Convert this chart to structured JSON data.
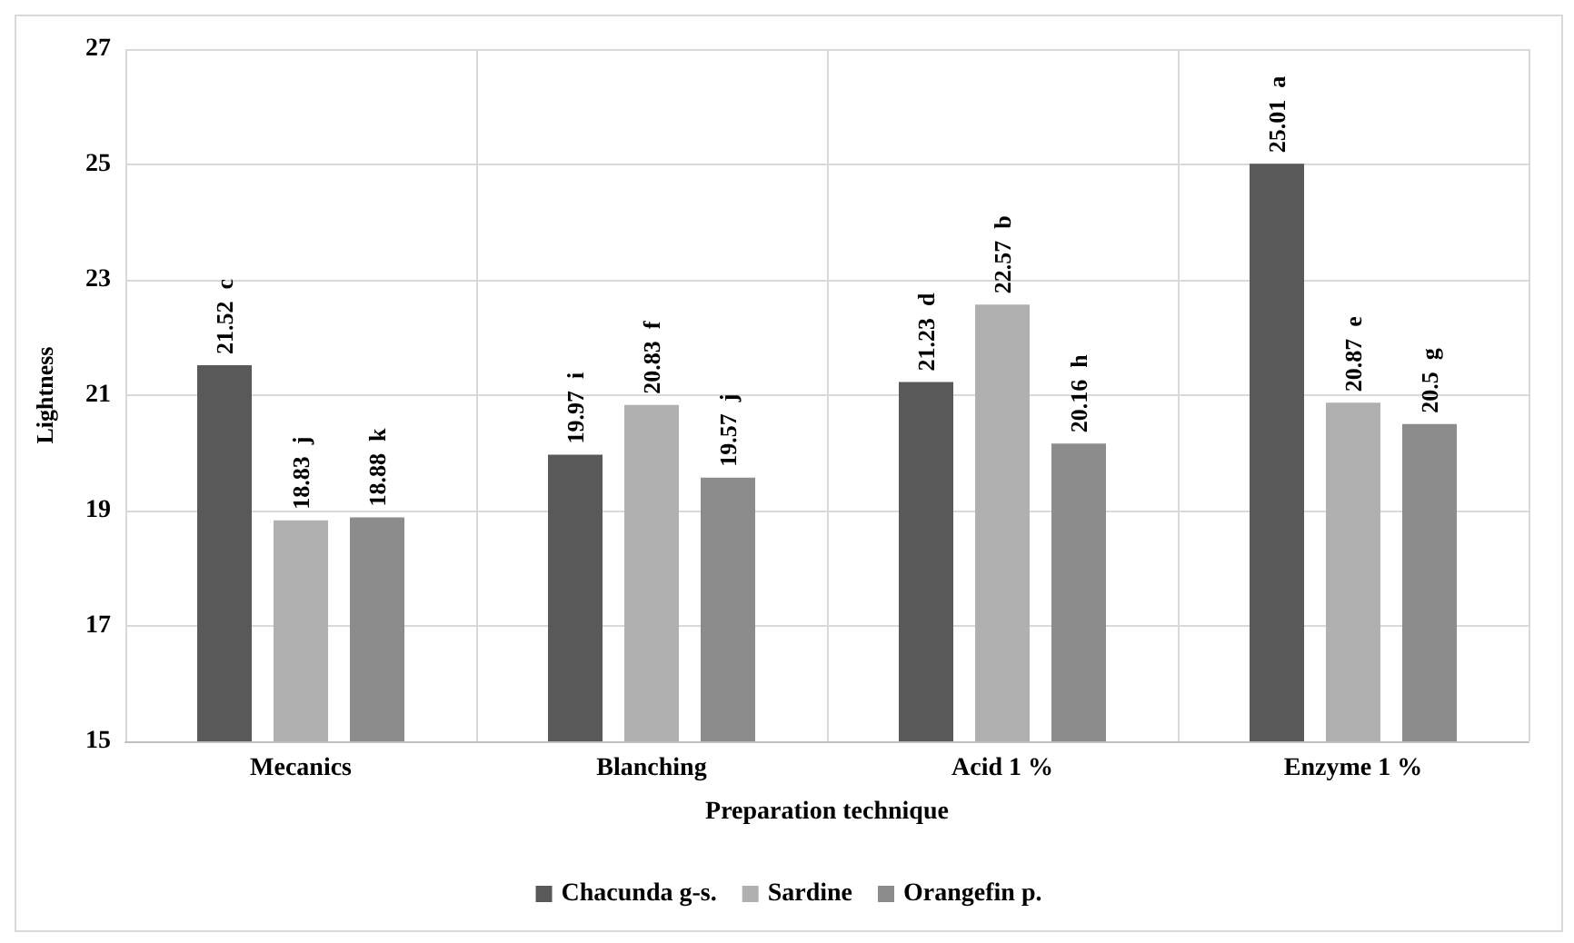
{
  "chart_data": {
    "type": "bar",
    "xlabel": "Preparation technique",
    "ylabel": "Lightness",
    "categories": [
      "Mecanics",
      "Blanching",
      "Acid 1 %",
      "Enzyme 1 %"
    ],
    "series": [
      {
        "name": "Chacunda g-s.",
        "color": "#595959",
        "values": [
          21.52,
          19.97,
          21.23,
          25.01
        ],
        "value_labels": [
          "21.52  c",
          "19.97  i",
          "21.23  d",
          "25.01  a"
        ]
      },
      {
        "name": "Sardine",
        "color": "#b0b0b0",
        "values": [
          18.83,
          20.83,
          22.57,
          20.87
        ],
        "value_labels": [
          "18.83  j",
          "20.83  f",
          "22.57  b",
          "20.87  e"
        ]
      },
      {
        "name": "Orangefin p.",
        "color": "#8c8c8c",
        "values": [
          18.88,
          19.57,
          20.16,
          20.5
        ],
        "value_labels": [
          "18.88  k",
          "19.57  j",
          "20.16  h",
          "20.5  g"
        ]
      }
    ],
    "ylim": [
      15,
      27
    ],
    "yticks": [
      15,
      17,
      19,
      21,
      23,
      25,
      27
    ],
    "grid": true,
    "legend": "bottom"
  }
}
